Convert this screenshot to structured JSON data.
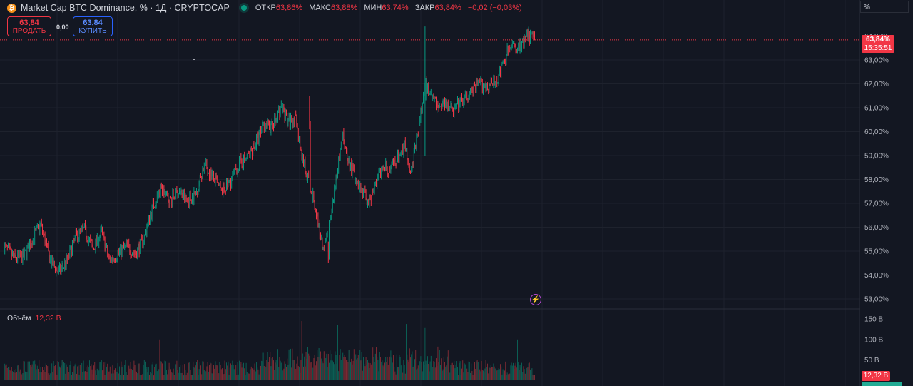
{
  "header": {
    "icon_glyph": "₿",
    "symbol_line": "Market Cap BTC Dominance, % · 1Д · CRYPTOCAP",
    "ohlc": [
      {
        "label": "ОТКР",
        "value": "63,86%"
      },
      {
        "label": "МАКС",
        "value": "63,88%"
      },
      {
        "label": "МИН",
        "value": "63,74%"
      },
      {
        "label": "ЗАКР",
        "value": "63,84%"
      },
      {
        "label": "",
        "value": "−0,02 (−0,03%)"
      }
    ]
  },
  "trade": {
    "sell_price": "63,84",
    "sell_label": "ПРОДАТЬ",
    "spread": "0,00",
    "buy_price": "63,84",
    "buy_label": "КУПИТЬ"
  },
  "scale_unit": "%",
  "last_price": {
    "value": "63,84%",
    "countdown": "15:35:51"
  },
  "volume": {
    "label": "Объём",
    "value": "12,32 B",
    "tag": "12,32 B"
  },
  "colors": {
    "up": "#089981",
    "down": "#f23645",
    "background": "#131722",
    "grid": "#1e222d"
  },
  "icons": {
    "alert": "lightning-icon"
  },
  "chart_data": {
    "type": "candlestick",
    "price_axis": {
      "ticks": [
        {
          "value": 53,
          "label": "53,00%"
        },
        {
          "value": 54,
          "label": "54,00%"
        },
        {
          "value": 55,
          "label": "55,00%"
        },
        {
          "value": 56,
          "label": "56,00%"
        },
        {
          "value": 57,
          "label": "57,00%"
        },
        {
          "value": 58,
          "label": "58,00%"
        },
        {
          "value": 59,
          "label": "59,00%"
        },
        {
          "value": 60,
          "label": "60,00%"
        },
        {
          "value": 61,
          "label": "61,00%"
        },
        {
          "value": 62,
          "label": "62,00%"
        },
        {
          "value": 63,
          "label": "63,00%"
        },
        {
          "value": 64,
          "label": "64,00%"
        }
      ]
    },
    "volume_axis": {
      "ticks": [
        {
          "value": 50,
          "label": "50 B"
        },
        {
          "value": 100,
          "label": "100 B"
        },
        {
          "value": 150,
          "label": "150 B"
        }
      ]
    },
    "last_close": 63.84,
    "close_path": [
      [
        0,
        55.2
      ],
      [
        12,
        54.7
      ],
      [
        24,
        54.8
      ],
      [
        33,
        55.5
      ],
      [
        43,
        56.1
      ],
      [
        54,
        54.6
      ],
      [
        64,
        54.1
      ],
      [
        74,
        54.6
      ],
      [
        84,
        55.6
      ],
      [
        94,
        55.9
      ],
      [
        104,
        55.1
      ],
      [
        114,
        55.8
      ],
      [
        123,
        54.6
      ],
      [
        133,
        54.9
      ],
      [
        143,
        55.2
      ],
      [
        154,
        54.9
      ],
      [
        164,
        55.6
      ],
      [
        174,
        56.9
      ],
      [
        184,
        57.6
      ],
      [
        194,
        57.1
      ],
      [
        204,
        57.5
      ],
      [
        214,
        57.1
      ],
      [
        224,
        57.4
      ],
      [
        234,
        58.6
      ],
      [
        244,
        58.1
      ],
      [
        254,
        57.5
      ],
      [
        264,
        57.9
      ],
      [
        274,
        58.6
      ],
      [
        284,
        58.9
      ],
      [
        294,
        59.5
      ],
      [
        304,
        60.3
      ],
      [
        314,
        60.2
      ],
      [
        324,
        61.1
      ],
      [
        332,
        60.4
      ],
      [
        340,
        60.6
      ],
      [
        348,
        59.0
      ],
      [
        356,
        58.0
      ],
      [
        364,
        56.8
      ],
      [
        372,
        55.2
      ],
      [
        380,
        56.0
      ],
      [
        388,
        58.1
      ],
      [
        396,
        59.8
      ],
      [
        404,
        58.6
      ],
      [
        412,
        58.0
      ],
      [
        420,
        57.4
      ],
      [
        428,
        57.0
      ],
      [
        436,
        58.1
      ],
      [
        444,
        58.5
      ],
      [
        452,
        58.4
      ],
      [
        460,
        58.9
      ],
      [
        468,
        59.4
      ],
      [
        476,
        58.4
      ],
      [
        484,
        60.0
      ],
      [
        492,
        62.0
      ],
      [
        500,
        61.5
      ],
      [
        508,
        61.0
      ],
      [
        516,
        61.3
      ],
      [
        524,
        60.8
      ],
      [
        532,
        61.2
      ],
      [
        540,
        61.4
      ],
      [
        548,
        61.7
      ],
      [
        556,
        62.0
      ],
      [
        564,
        61.9
      ],
      [
        572,
        62.0
      ],
      [
        580,
        62.5
      ],
      [
        588,
        63.3
      ],
      [
        596,
        63.6
      ],
      [
        604,
        63.5
      ],
      [
        612,
        64.0
      ],
      [
        616,
        63.9
      ],
      [
        620,
        63.84
      ]
    ],
    "special_bars": [
      {
        "index": 379,
        "open": 55.0,
        "close": 54.8,
        "high": 55.4,
        "low": 54.5
      },
      {
        "index": 492,
        "open": 59.0,
        "close": 61.4,
        "high": 64.4,
        "low": 59.0
      },
      {
        "index": 357,
        "open": 61.1,
        "close": 60.4,
        "high": 61.5,
        "low": 60.1
      }
    ],
    "volume_peaks": [
      {
        "index": 348,
        "value": 145
      },
      {
        "index": 390,
        "value": 136
      },
      {
        "index": 470,
        "value": 138
      },
      {
        "index": 492,
        "value": 128
      },
      {
        "index": 182,
        "value": 100
      },
      {
        "index": 600,
        "value": 100
      }
    ]
  }
}
